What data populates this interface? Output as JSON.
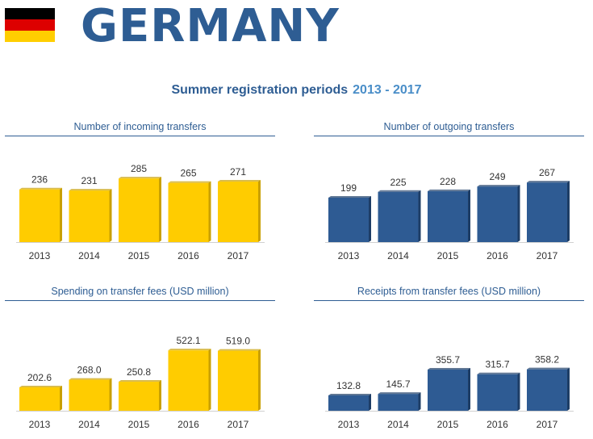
{
  "header": {
    "country": "GERMANY",
    "subtitle": "Summer registration periods",
    "years": "2013 - 2017"
  },
  "colors": {
    "flag_black": "#000000",
    "flag_red": "#dd0000",
    "flag_gold": "#ffce00",
    "yellow": "#ffcc00",
    "yellow_side": "#c9a000",
    "blue": "#2e5b93",
    "blue_side": "#1d3d66",
    "title_blue": "#2e5d93"
  },
  "chart_data": [
    {
      "type": "bar",
      "title": "Number of incoming transfers",
      "categories": [
        "2013",
        "2014",
        "2015",
        "2016",
        "2017"
      ],
      "values": [
        236,
        231,
        285,
        265,
        271
      ],
      "labels": [
        "236",
        "231",
        "285",
        "265",
        "271"
      ],
      "ylim": [
        0,
        300
      ],
      "color": "yellow"
    },
    {
      "type": "bar",
      "title": "Number of outgoing transfers",
      "categories": [
        "2013",
        "2014",
        "2015",
        "2016",
        "2017"
      ],
      "values": [
        199,
        225,
        228,
        249,
        267
      ],
      "labels": [
        "199",
        "225",
        "228",
        "249",
        "267"
      ],
      "ylim": [
        0,
        300
      ],
      "color": "blue"
    },
    {
      "type": "bar",
      "title": "Spending on transfer fees (USD million)",
      "categories": [
        "2013",
        "2014",
        "2015",
        "2016",
        "2017"
      ],
      "values": [
        202.6,
        268.0,
        250.8,
        522.1,
        519.0
      ],
      "labels": [
        "202.6",
        "268.0",
        "250.8",
        "522.1",
        "519.0"
      ],
      "ylim": [
        0,
        600
      ],
      "color": "yellow"
    },
    {
      "type": "bar",
      "title": "Receipts from transfer fees (USD million)",
      "categories": [
        "2013",
        "2014",
        "2015",
        "2016",
        "2017"
      ],
      "values": [
        132.8,
        145.7,
        355.7,
        315.7,
        358.2
      ],
      "labels": [
        "132.8",
        "145.7",
        "355.7",
        "315.7",
        "358.2"
      ],
      "ylim": [
        0,
        600
      ],
      "color": "blue"
    }
  ]
}
